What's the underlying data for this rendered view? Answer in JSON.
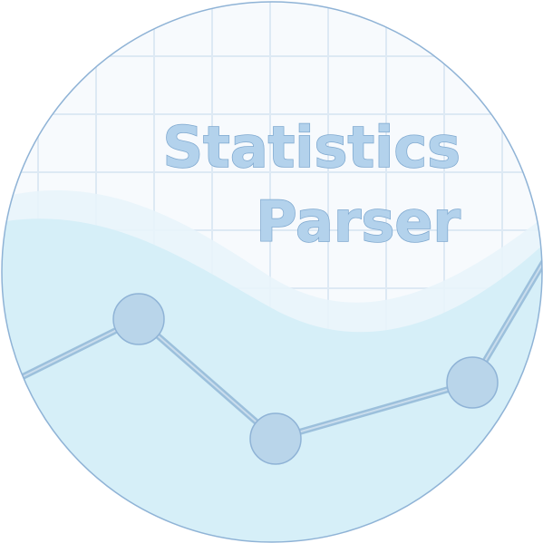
{
  "logo": {
    "title_line1": "Statistics",
    "title_line2": "Parser"
  },
  "colors": {
    "background": "#f7fafd",
    "grid": "#dde9f4",
    "border": "#8fb3d6",
    "wave_light": "#e8f4fb",
    "wave_mid": "#d6eff8",
    "line": "#9cc0dc",
    "node_fill": "#b9d5ea",
    "node_stroke": "#8fb3d6",
    "text_fill": "#b3d2ec",
    "text_stroke": "#7ea8cf"
  }
}
